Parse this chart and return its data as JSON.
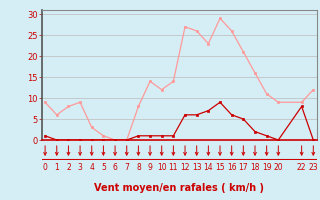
{
  "x_labels": [
    "0",
    "1",
    "2",
    "3",
    "4",
    "5",
    "6",
    "7",
    "8",
    "9",
    "10",
    "11",
    "12",
    "13",
    "14",
    "15",
    "16",
    "17",
    "18",
    "19",
    "20",
    "",
    "22",
    "23"
  ],
  "x_ticks": [
    0,
    1,
    2,
    3,
    4,
    5,
    6,
    7,
    8,
    9,
    10,
    11,
    12,
    13,
    14,
    15,
    16,
    17,
    18,
    19,
    20,
    21,
    22,
    23
  ],
  "rafales_x": [
    0,
    1,
    2,
    3,
    4,
    5,
    6,
    7,
    8,
    9,
    10,
    11,
    12,
    13,
    14,
    15,
    16,
    17,
    18,
    19,
    20,
    22,
    23
  ],
  "rafales_y": [
    9,
    6,
    8,
    9,
    3,
    1,
    0,
    0,
    8,
    14,
    12,
    14,
    27,
    26,
    23,
    29,
    26,
    21,
    16,
    11,
    9,
    9,
    12
  ],
  "moyen_x": [
    0,
    1,
    2,
    3,
    4,
    5,
    6,
    7,
    8,
    9,
    10,
    11,
    12,
    13,
    14,
    15,
    16,
    17,
    18,
    19,
    20,
    22,
    23
  ],
  "moyen_y": [
    1,
    0,
    0,
    0,
    0,
    0,
    0,
    0,
    1,
    1,
    1,
    1,
    6,
    6,
    7,
    9,
    6,
    5,
    2,
    1,
    0,
    8,
    0
  ],
  "bg_color": "#d5eef5",
  "line_color_rafales": "#ff9999",
  "line_color_moyen": "#cc0000",
  "marker_color_rafales": "#ff9999",
  "marker_color_moyen": "#cc0000",
  "grid_color": "#bbbbbb",
  "xlabel": "Vent moyen/en rafales ( km/h )",
  "ylabel_ticks": [
    0,
    5,
    10,
    15,
    20,
    25,
    30
  ],
  "ylim": [
    0,
    31
  ],
  "xlim": [
    -0.3,
    23.3
  ],
  "arrow_color": "#cc0000",
  "axis_label_color": "#cc0000",
  "tick_label_color": "#cc0000",
  "hline_color": "#cc0000",
  "spine_color": "#888888"
}
